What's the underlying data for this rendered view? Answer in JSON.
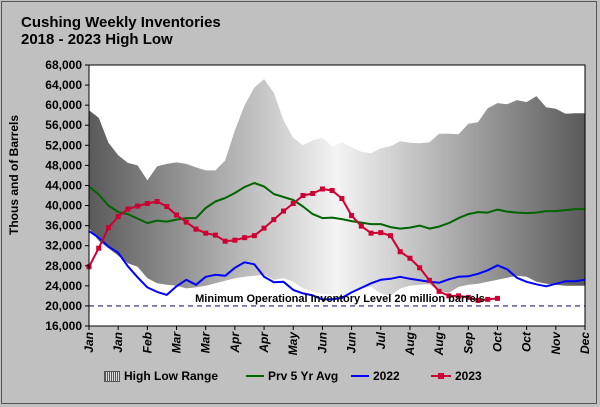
{
  "title": {
    "line1": "Cushing Weekly Inventories",
    "line2": "2018 - 2023 High Low"
  },
  "chart_data": {
    "type": "area",
    "ylabel": "Thous and of Barrels",
    "xlabel": "",
    "ylim": [
      16000,
      68000
    ],
    "yticks": [
      "16,000",
      "20,000",
      "24,000",
      "28,000",
      "32,000",
      "36,000",
      "40,000",
      "44,000",
      "48,000",
      "52,000",
      "56,000",
      "60,000",
      "64,000",
      "68,000"
    ],
    "xticks": [
      "Jan",
      "Jan",
      "Feb",
      "Mar",
      "Mar",
      "Apr",
      "Apr",
      "May",
      "Jun",
      "Jun",
      "Jul",
      "Aug",
      "Aug",
      "Sep",
      "Oct",
      "Oct",
      "Nov",
      "Dec"
    ],
    "annotation": "Minimum Operational Inventory Level 20 million barrels",
    "min_level": 20000,
    "weeks": 52,
    "range_high": [
      59000,
      57500,
      52500,
      50000,
      48500,
      48000,
      45000,
      47800,
      48300,
      48600,
      48300,
      47600,
      47000,
      47000,
      49000,
      55000,
      60000,
      63500,
      65200,
      62500,
      57000,
      53500,
      52000,
      53000,
      53500,
      51800,
      52600,
      51600,
      50700,
      50400,
      51400,
      51800,
      52800,
      52500,
      52400,
      52600,
      54300,
      54300,
      54200,
      56300,
      56600,
      59400,
      60400,
      60200,
      61000,
      60600,
      61800,
      59600,
      59300,
      58300,
      58400,
      58400
    ],
    "range_low": [
      35500,
      33000,
      31500,
      30000,
      28500,
      27800,
      25500,
      24500,
      24200,
      24000,
      23500,
      23700,
      24000,
      24500,
      25000,
      25500,
      25800,
      26000,
      26200,
      25200,
      25500,
      24800,
      23500,
      22800,
      22400,
      22200,
      22000,
      22500,
      23500,
      23800,
      22500,
      22000,
      23500,
      24000,
      24200,
      24300,
      23000,
      22600,
      23800,
      24200,
      24400,
      24800,
      25200,
      25600,
      26000,
      25800,
      24800,
      24400,
      24200,
      24000,
      24000,
      24000
    ],
    "series": [
      {
        "name": "Prv 5 Yr Avg",
        "color": "#006400",
        "values": [
          43800,
          42200,
          40000,
          38700,
          38300,
          37400,
          36500,
          37000,
          36800,
          37200,
          37500,
          37500,
          39500,
          40800,
          41500,
          42500,
          43700,
          44500,
          43800,
          42300,
          41700,
          41100,
          39800,
          38300,
          37500,
          37600,
          37300,
          36900,
          36600,
          36300,
          36300,
          35700,
          35400,
          35600,
          36000,
          35400,
          35800,
          36500,
          37500,
          38300,
          38700,
          38600,
          39200,
          38800,
          38600,
          38500,
          38600,
          38900,
          38900,
          39100,
          39300,
          39300
        ]
      },
      {
        "name": "2022",
        "color": "#0000ff",
        "values": [
          34900,
          33600,
          31800,
          30600,
          27900,
          25700,
          23700,
          22800,
          22200,
          23900,
          25200,
          24200,
          25800,
          26200,
          26000,
          27600,
          28700,
          28300,
          25800,
          24700,
          24800,
          23200,
          22500,
          22100,
          21300,
          21300,
          21600,
          22700,
          23600,
          24500,
          25200,
          25400,
          25800,
          25400,
          25100,
          24800,
          24600,
          25300,
          25800,
          25900,
          26400,
          27100,
          28100,
          27300,
          25600,
          24800,
          24300,
          23900,
          24400,
          24900,
          24900,
          25200
        ]
      },
      {
        "name": "2023",
        "color": "#cc0033",
        "values": [
          27800,
          31500,
          35600,
          37800,
          39300,
          39900,
          40400,
          40800,
          39800,
          38100,
          36700,
          35300,
          34500,
          34100,
          32900,
          33100,
          33600,
          34000,
          35500,
          37200,
          38900,
          40400,
          42000,
          42400,
          43300,
          43000,
          41400,
          38000,
          35900,
          34500,
          34600,
          34000,
          30800,
          29500,
          27600,
          25100,
          22900,
          22000,
          22000,
          21700,
          21100,
          21300,
          21500
        ]
      }
    ],
    "legend": {
      "position": "bottom",
      "items": [
        "High Low Range",
        "Prv 5 Yr Avg",
        "2022",
        "2023"
      ]
    }
  }
}
